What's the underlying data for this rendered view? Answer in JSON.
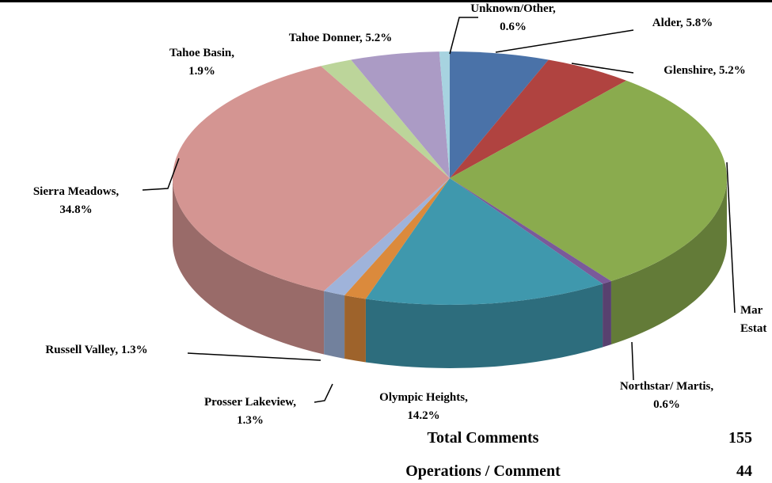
{
  "chart_data": {
    "type": "pie3d",
    "labels": [
      [
        "Alder, 5.8%"
      ],
      [
        "Glenshire, 5.2%"
      ],
      [
        "Mar",
        "Estat"
      ],
      [
        "Northstar/ Martis,",
        "0.6%"
      ],
      [
        "Olympic Heights,",
        "14.2%"
      ],
      [
        "Prosser Lakeview,",
        "1.3%"
      ],
      [
        "Russell Valley, 1.3%"
      ],
      [
        "Sierra Meadows,",
        "34.8%"
      ],
      [
        "Tahoe Basin,",
        "1.9%"
      ],
      [
        "Tahoe Donner, 5.2%"
      ],
      [
        "Unknown/Other,",
        "0.6%"
      ]
    ],
    "values": [
      5.8,
      5.2,
      29.1,
      0.6,
      14.2,
      1.3,
      1.3,
      34.8,
      1.9,
      5.2,
      0.6
    ],
    "colors": [
      "#4a72a8",
      "#b04340",
      "#8aab4e",
      "#7a5a9a",
      "#3f98ad",
      "#db8a3c",
      "#9fb3da",
      "#d49592",
      "#bcd59a",
      "#ab9bc5",
      "#a7d3e0"
    ]
  },
  "summary": [
    {
      "label": "Total Comments",
      "value": 155
    },
    {
      "label": "Operations / Comment",
      "value": 44
    }
  ]
}
